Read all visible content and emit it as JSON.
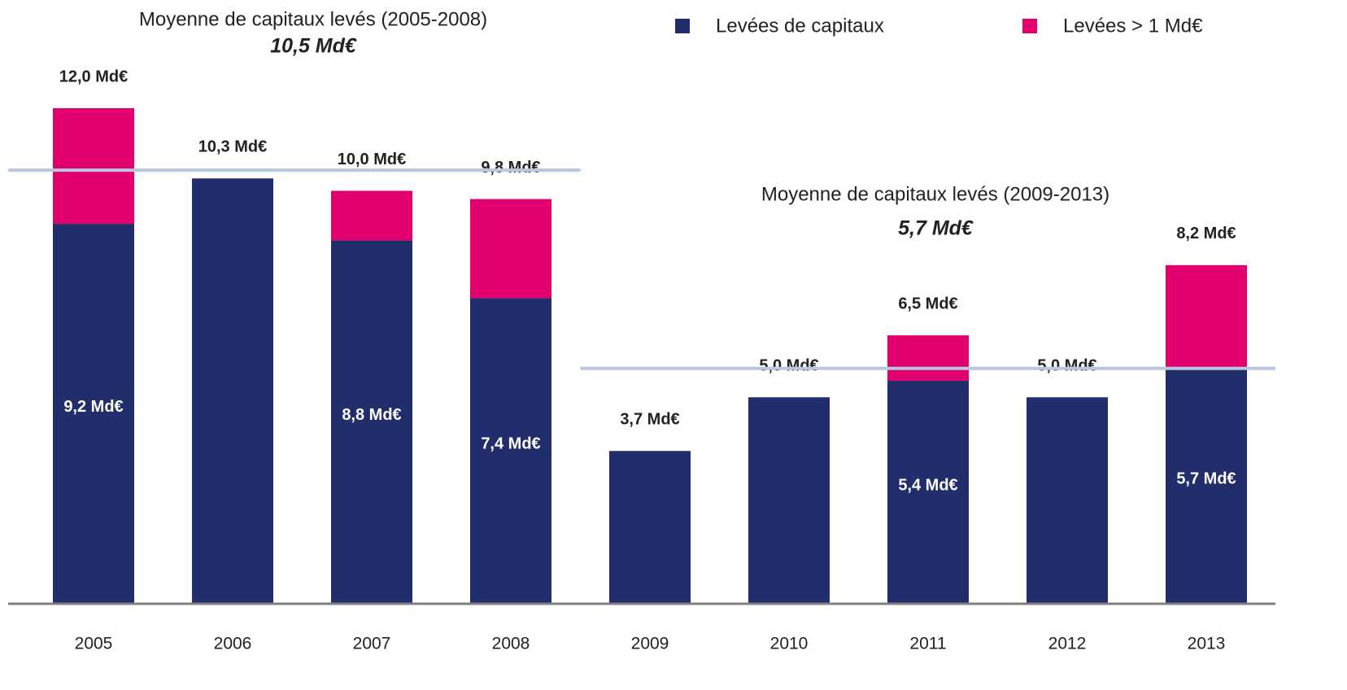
{
  "chart_data": {
    "type": "stacked_bar",
    "categories": [
      "2005",
      "2006",
      "2007",
      "2008",
      "2009",
      "2010",
      "2011",
      "2012",
      "2013"
    ],
    "series": [
      {
        "name": "Levées de capitaux",
        "color": "#222d6b",
        "values": [
          9.2,
          10.3,
          8.8,
          7.4,
          3.7,
          5.0,
          5.4,
          5.0,
          5.7
        ],
        "value_labels": [
          "9,2 Md€",
          null,
          "8,8 Md€",
          "7,4 Md€",
          null,
          null,
          "5,4 Md€",
          null,
          "5,7 Md€"
        ]
      },
      {
        "name": "Levées > 1 Md€",
        "color": "#e2006f",
        "values": [
          2.8,
          null,
          1.2,
          2.4,
          null,
          null,
          1.1,
          null,
          2.5
        ]
      }
    ],
    "totals": [
      12.0,
      10.3,
      10.0,
      9.8,
      3.7,
      5.0,
      6.5,
      5.0,
      8.2
    ],
    "total_labels": [
      "12,0 Md€",
      "10,3 Md€",
      "10,0 Md€",
      "9,8 Md€",
      "3,7 Md€",
      "5,0 Md€",
      "6,5 Md€",
      "5,0 Md€",
      "8,2 Md€"
    ],
    "annotations": [
      {
        "text": "Moyenne de capitaux levés (2005-2008)",
        "value": 10.5,
        "label": "10,5 Md€",
        "from": "2005",
        "to": "2008"
      },
      {
        "text": "Moyenne de capitaux levés (2009-2013)",
        "value": 5.7,
        "label": "5,7 Md€",
        "from": "2009",
        "to": "2013"
      }
    ],
    "reference_line_color": "#b4c9df",
    "ylim": [
      0,
      12
    ]
  }
}
